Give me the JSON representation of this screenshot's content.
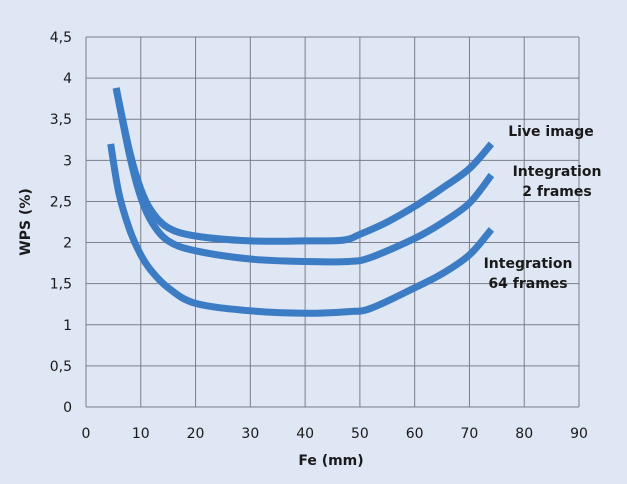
{
  "chart_data": {
    "type": "line",
    "title": "",
    "xlabel": "Fe (mm)",
    "ylabel": "WPS (%)",
    "xlim": [
      0,
      90
    ],
    "ylim": [
      0,
      4.5
    ],
    "x_ticks": [
      "0",
      "10",
      "20",
      "30",
      "40",
      "50",
      "60",
      "70",
      "80",
      "90"
    ],
    "y_ticks": [
      "0",
      "0,5",
      "1",
      "1,5",
      "2",
      "2,5",
      "3",
      "3,5",
      "4",
      "4,5"
    ],
    "grid": true,
    "line_color": "#3b7cc5",
    "background_color": "#dfe6f4",
    "series": [
      {
        "name": "Live image",
        "label_lines": [
          "Live image"
        ],
        "points": [
          [
            5.5,
            3.88
          ],
          [
            8,
            3.1
          ],
          [
            10,
            2.65
          ],
          [
            12,
            2.38
          ],
          [
            15,
            2.18
          ],
          [
            20,
            2.08
          ],
          [
            30,
            2.02
          ],
          [
            40,
            2.02
          ],
          [
            47,
            2.03
          ],
          [
            50,
            2.1
          ],
          [
            55,
            2.25
          ],
          [
            60,
            2.44
          ],
          [
            65,
            2.66
          ],
          [
            70,
            2.9
          ],
          [
            74,
            3.2
          ]
        ]
      },
      {
        "name": "Integration 2 frames",
        "label_lines": [
          "Integration",
          "2 frames"
        ],
        "points": [
          [
            5.5,
            3.88
          ],
          [
            8,
            3.05
          ],
          [
            10,
            2.55
          ],
          [
            12,
            2.25
          ],
          [
            15,
            2.02
          ],
          [
            20,
            1.9
          ],
          [
            30,
            1.8
          ],
          [
            40,
            1.77
          ],
          [
            48,
            1.77
          ],
          [
            52,
            1.82
          ],
          [
            60,
            2.05
          ],
          [
            65,
            2.24
          ],
          [
            70,
            2.48
          ],
          [
            74,
            2.82
          ]
        ]
      },
      {
        "name": "Integration 64 frames",
        "label_lines": [
          "Integration",
          "64  frames"
        ],
        "points": [
          [
            4.5,
            3.2
          ],
          [
            6,
            2.6
          ],
          [
            8,
            2.15
          ],
          [
            10,
            1.85
          ],
          [
            12,
            1.65
          ],
          [
            15,
            1.45
          ],
          [
            20,
            1.26
          ],
          [
            30,
            1.17
          ],
          [
            40,
            1.14
          ],
          [
            48,
            1.16
          ],
          [
            52,
            1.2
          ],
          [
            60,
            1.45
          ],
          [
            65,
            1.62
          ],
          [
            70,
            1.85
          ],
          [
            74,
            2.16
          ]
        ]
      }
    ]
  }
}
